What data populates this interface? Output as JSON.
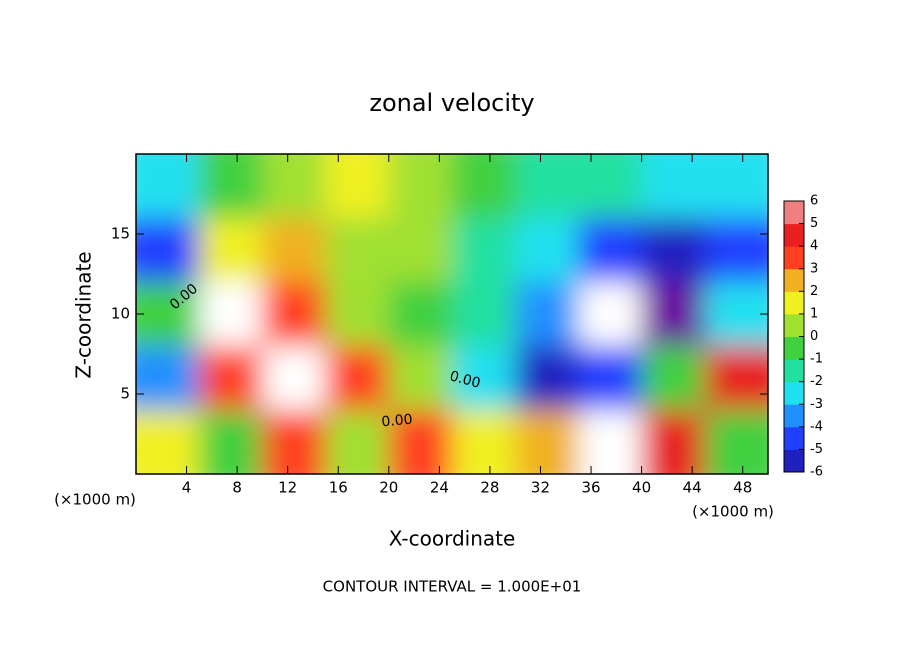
{
  "chart_data": {
    "type": "heatmap",
    "title": "zonal velocity",
    "x_label": "X-coordinate",
    "y_label": "Z-coordinate",
    "x_unit_label": "(×1000 m)",
    "y_unit_label": "(×1000 m)",
    "footnote": "CONTOUR INTERVAL = 1.000E+01",
    "contour_labels": [
      "0.00",
      "0.00",
      "0.00"
    ],
    "x": [
      2.5,
      7.5,
      12.5,
      17.5,
      22.5,
      27.5,
      32.5,
      37.5,
      42.5,
      47.5
    ],
    "y": [
      18,
      14,
      10,
      6,
      2
    ],
    "z": [
      [
        -2,
        0,
        1,
        2,
        1,
        0,
        -1,
        -1,
        -2,
        -2
      ],
      [
        -4,
        2,
        3,
        1,
        1,
        -1,
        -2,
        -4,
        -5,
        -4
      ],
      [
        0,
        7,
        4,
        1,
        0,
        -1,
        -3,
        -7,
        -6,
        -2
      ],
      [
        -3,
        4,
        7,
        4,
        1,
        -2,
        -5,
        -4,
        0,
        5
      ],
      [
        2,
        0,
        4,
        1,
        4,
        2,
        3,
        7,
        5,
        0
      ]
    ],
    "xlim": [
      0,
      50
    ],
    "ylim": [
      0,
      20
    ],
    "xticks": [
      4,
      8,
      12,
      16,
      20,
      24,
      28,
      32,
      36,
      40,
      44,
      48
    ],
    "yticks": [
      5,
      10,
      15
    ],
    "colorbar_ticks": [
      -6,
      -5,
      -4,
      -3,
      -2,
      -1,
      0,
      1,
      2,
      3,
      4,
      5,
      6
    ],
    "colormap": [
      "#6a0d9e",
      "#2020c0",
      "#2040ff",
      "#2090ff",
      "#20e0f0",
      "#20e0a0",
      "#40d040",
      "#a0e030",
      "#f0f020",
      "#f0b020",
      "#ff4020",
      "#e82020",
      "#f08080"
    ],
    "out_of_range_color": "#ffffff"
  }
}
